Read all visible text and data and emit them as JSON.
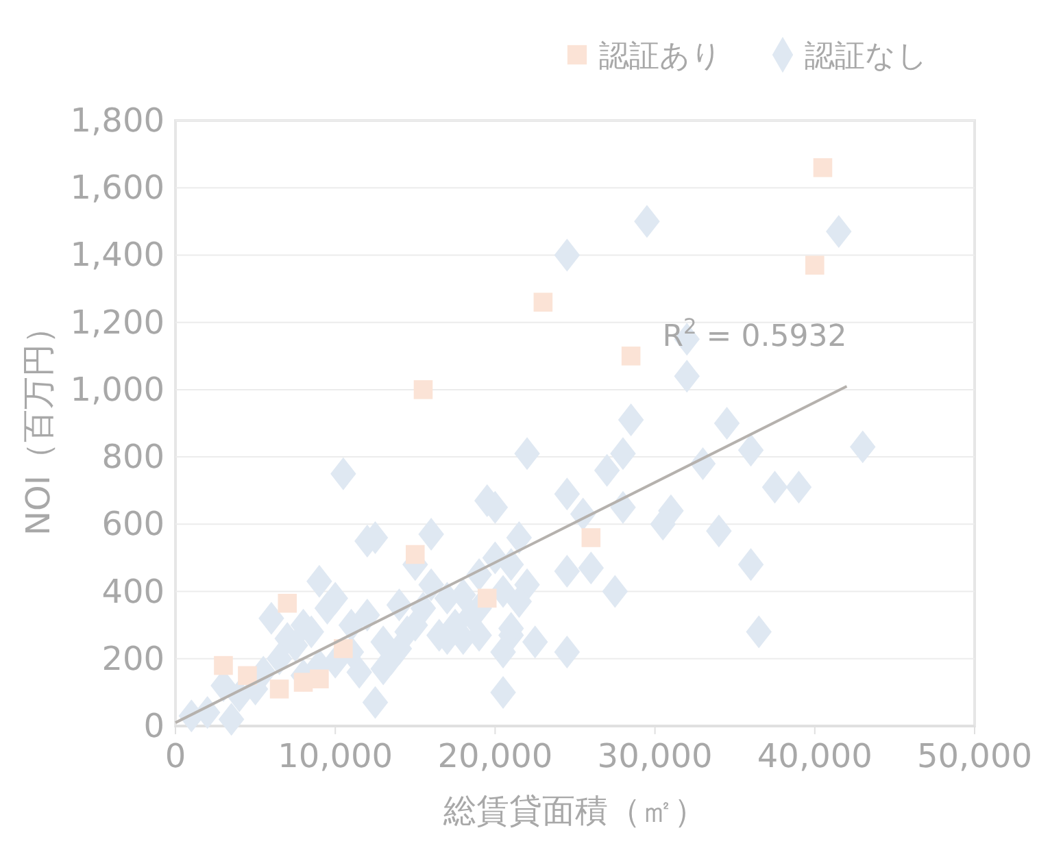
{
  "chart_data": {
    "type": "scatter",
    "xlabel": "総賃貸面積（㎡）",
    "ylabel": "NOI（百万円）",
    "legend": "top right",
    "grid": "y",
    "xlim": [
      0,
      50000
    ],
    "xticks": [
      0,
      {
        "value": 10000,
        "label": "10,000"
      },
      {
        "value": 20000,
        "label": "20,000"
      },
      {
        "value": 30000,
        "label": "30,000"
      },
      {
        "value": 40000,
        "label": "40,000"
      },
      {
        "value": 50000,
        "label": "50,000"
      }
    ],
    "ylim": [
      0,
      1800
    ],
    "yticks": [
      0,
      200,
      400,
      600,
      800,
      {
        "value": 1000,
        "label": "1,000"
      },
      {
        "value": 1200,
        "label": "1,200"
      },
      {
        "value": 1400,
        "label": "1,400"
      },
      {
        "value": 1600,
        "label": "1,600"
      },
      {
        "value": 1800,
        "label": "1,800"
      }
    ],
    "annotations": [
      "R$^{2}$ = 0.5932"
    ],
    "series": [
      {
        "name": "認証なし",
        "color": "#dfe8f2",
        "marker": "diamond",
        "x": [
          29500,
          24500,
          41500,
          32000,
          32000,
          28500,
          34500,
          22000,
          28000,
          33000,
          36000,
          43000,
          39000,
          37500,
          10500,
          27000,
          24500,
          19500,
          20000,
          25500,
          28000,
          31000,
          30500,
          34000,
          12500,
          16000,
          21500,
          36000,
          26000,
          24500,
          27500,
          36500,
          20500,
          12500,
          24500,
          22500,
          21000,
          19000,
          20500,
          2000,
          3500,
          1000,
          5000,
          6000,
          7000,
          8000,
          9000,
          10000,
          11000,
          12000,
          13000,
          14000,
          15000,
          16000,
          17000,
          18000,
          19000,
          20000,
          21000,
          22000,
          4000,
          6500,
          7500,
          8500,
          9500,
          11500,
          13500,
          14500,
          15500,
          17500,
          18500,
          20500,
          21500,
          9000,
          11000,
          13000,
          17000,
          19000,
          3000,
          5500,
          8000,
          10000,
          14000,
          16500,
          18000,
          21000,
          12000,
          15000
        ],
        "values": [
          1500,
          1400,
          1470,
          1150,
          1040,
          910,
          900,
          810,
          810,
          780,
          820,
          830,
          710,
          710,
          750,
          760,
          690,
          670,
          650,
          630,
          650,
          640,
          600,
          580,
          560,
          570,
          560,
          480,
          470,
          460,
          400,
          280,
          100,
          70,
          220,
          250,
          270,
          270,
          220,
          40,
          20,
          30,
          110,
          320,
          260,
          300,
          430,
          380,
          300,
          330,
          250,
          360,
          300,
          420,
          380,
          390,
          450,
          500,
          480,
          420,
          90,
          200,
          240,
          280,
          350,
          160,
          200,
          280,
          350,
          300,
          330,
          400,
          370,
          180,
          220,
          170,
          260,
          350,
          120,
          160,
          150,
          190,
          230,
          270,
          260,
          290,
          550,
          480
        ]
      },
      {
        "name": "認証あり",
        "color": "#fbe3d6",
        "marker": "square",
        "x": [
          40500,
          40000,
          23000,
          28500,
          15500,
          15000,
          19500,
          26000,
          7000,
          3000,
          4500,
          6500,
          8000,
          9000,
          10500
        ],
        "values": [
          1660,
          1370,
          1260,
          1100,
          1000,
          510,
          380,
          560,
          365,
          180,
          150,
          110,
          130,
          140,
          230
        ]
      },
      {
        "type": "line",
        "color": "#b5b1ad",
        "marker": "none",
        "x": [
          0,
          42000
        ],
        "values": [
          10,
          1010
        ]
      }
    ]
  }
}
